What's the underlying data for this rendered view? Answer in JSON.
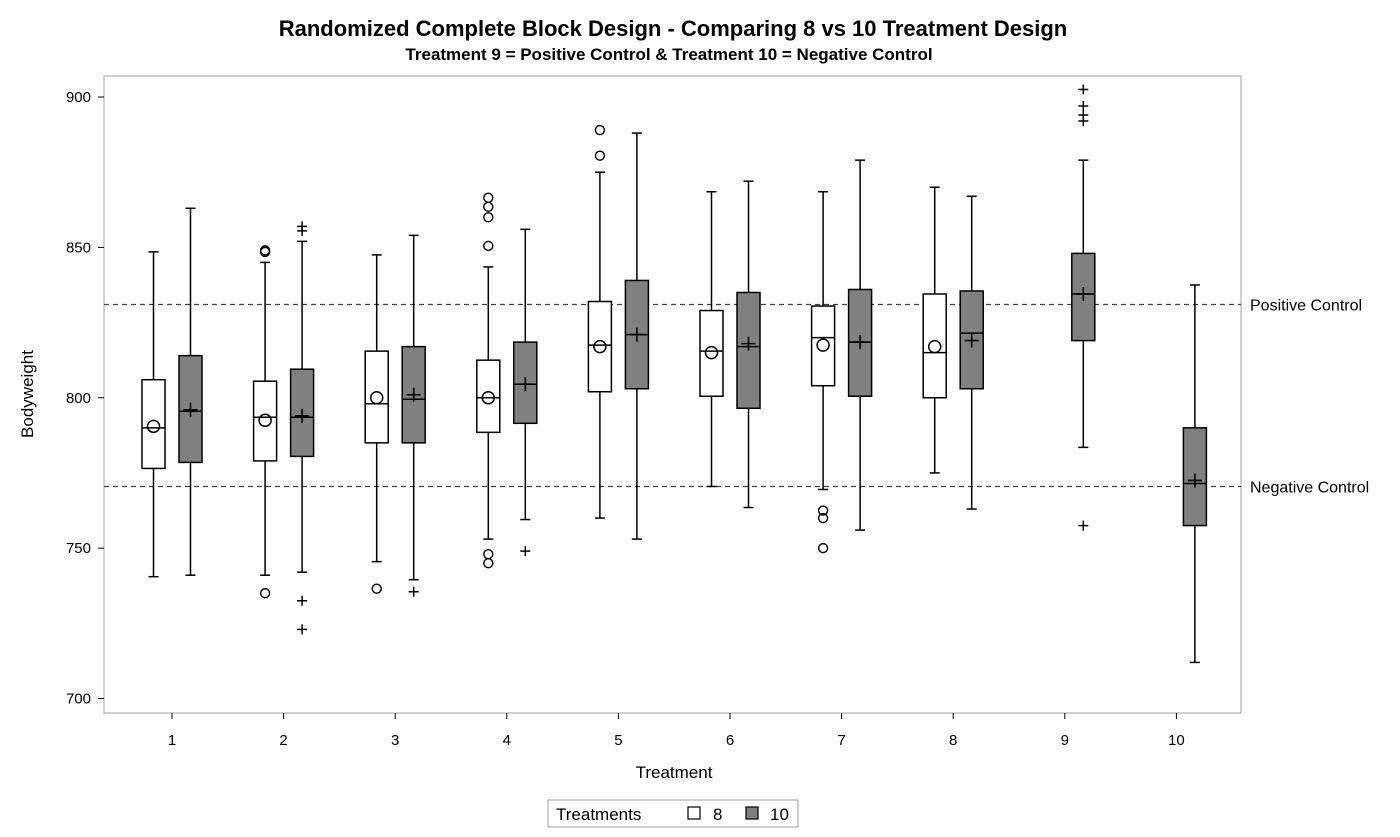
{
  "chart_data": {
    "type": "box",
    "title": "Randomized Complete Block Design - Comparing 8 vs 10 Treatment Design",
    "subtitle": "Treatment 9 = Positive Control & Treatment 10 = Negative Control",
    "xlabel": "Treatment",
    "ylabel": "Bodyweight",
    "ylim": [
      696,
      900
    ],
    "yticks": [
      "700",
      "750",
      "800",
      "850",
      "900"
    ],
    "categories": [
      "1",
      "2",
      "3",
      "4",
      "5",
      "6",
      "7",
      "8",
      "9",
      "10"
    ],
    "reference_lines": [
      {
        "label": "Positive Control",
        "y": 831
      },
      {
        "label": "Negative Control",
        "y": 770.5
      }
    ],
    "legend": {
      "title": "Treatments",
      "placement": "bottom-center",
      "items": [
        "8",
        "10"
      ]
    },
    "series": [
      {
        "name": "8",
        "color": "#ffffff",
        "mean_marker": "circle",
        "outlier_marker": "circle",
        "boxes": [
          {
            "category": "1",
            "whisker_low": 740.5,
            "q1": 776.5,
            "median": 790,
            "q3": 806,
            "whisker_high": 848.5,
            "mean": 790.5,
            "outliers": []
          },
          {
            "category": "2",
            "whisker_low": 741,
            "q1": 779,
            "median": 793.5,
            "q3": 805.5,
            "whisker_high": 845,
            "mean": 792.5,
            "outliers": [
              735,
              848.5,
              849
            ]
          },
          {
            "category": "3",
            "whisker_low": 745.5,
            "q1": 785,
            "median": 798,
            "q3": 815.5,
            "whisker_high": 847.5,
            "mean": 800,
            "outliers": [
              736.5
            ]
          },
          {
            "category": "4",
            "whisker_low": 753,
            "q1": 788.5,
            "median": 800,
            "q3": 812.5,
            "whisker_high": 843.5,
            "mean": 800,
            "outliers": [
              745,
              748,
              850.5,
              860,
              863.5,
              866.5
            ]
          },
          {
            "category": "5",
            "whisker_low": 760,
            "q1": 802,
            "median": 817.5,
            "q3": 832,
            "whisker_high": 875,
            "mean": 817,
            "outliers": [
              880.5,
              889
            ]
          },
          {
            "category": "6",
            "whisker_low": 770.5,
            "q1": 800.5,
            "median": 815.5,
            "q3": 829,
            "whisker_high": 868.5,
            "mean": 815,
            "outliers": []
          },
          {
            "category": "7",
            "whisker_low": 769.5,
            "q1": 804,
            "median": 820,
            "q3": 830.5,
            "whisker_high": 868.5,
            "mean": 817.5,
            "outliers": [
              750,
              760,
              762.5
            ]
          },
          {
            "category": "8",
            "whisker_low": 775,
            "q1": 800,
            "median": 815,
            "q3": 834.5,
            "whisker_high": 870,
            "mean": 817,
            "outliers": []
          }
        ]
      },
      {
        "name": "10",
        "color": "#808080",
        "mean_marker": "plus",
        "outlier_marker": "plus",
        "boxes": [
          {
            "category": "1",
            "whisker_low": 741,
            "q1": 778.5,
            "median": 795.5,
            "q3": 814,
            "whisker_high": 863,
            "mean": 796,
            "outliers": []
          },
          {
            "category": "2",
            "whisker_low": 742,
            "q1": 780.5,
            "median": 793.5,
            "q3": 809.5,
            "whisker_high": 852,
            "mean": 794,
            "outliers": [
              723,
              732.5,
              855.5,
              857
            ]
          },
          {
            "category": "3",
            "whisker_low": 739.5,
            "q1": 785,
            "median": 799.5,
            "q3": 817,
            "whisker_high": 854,
            "mean": 801,
            "outliers": [
              735.5
            ]
          },
          {
            "category": "4",
            "whisker_low": 759.5,
            "q1": 791.5,
            "median": 804.5,
            "q3": 818.5,
            "whisker_high": 856,
            "mean": 804.5,
            "outliers": [
              749
            ]
          },
          {
            "category": "5",
            "whisker_low": 753,
            "q1": 803,
            "median": 821,
            "q3": 839,
            "whisker_high": 888,
            "mean": 821,
            "outliers": []
          },
          {
            "category": "6",
            "whisker_low": 763.5,
            "q1": 796.5,
            "median": 817,
            "q3": 835,
            "whisker_high": 872,
            "mean": 818,
            "outliers": []
          },
          {
            "category": "7",
            "whisker_low": 756,
            "q1": 800.5,
            "median": 818.5,
            "q3": 836,
            "whisker_high": 879,
            "mean": 818.5,
            "outliers": []
          },
          {
            "category": "8",
            "whisker_low": 763,
            "q1": 803,
            "median": 821.5,
            "q3": 835.5,
            "whisker_high": 867,
            "mean": 819,
            "outliers": []
          },
          {
            "category": "9",
            "whisker_low": 783.5,
            "q1": 819,
            "median": 834.5,
            "q3": 848,
            "whisker_high": 879,
            "mean": 834.5,
            "outliers": [
              757.5,
              892,
              894,
              897,
              902.5
            ]
          },
          {
            "category": "10",
            "whisker_low": 712,
            "q1": 757.5,
            "median": 771.5,
            "q3": 790,
            "whisker_high": 837.5,
            "mean": 772.5,
            "outliers": []
          }
        ]
      }
    ]
  }
}
